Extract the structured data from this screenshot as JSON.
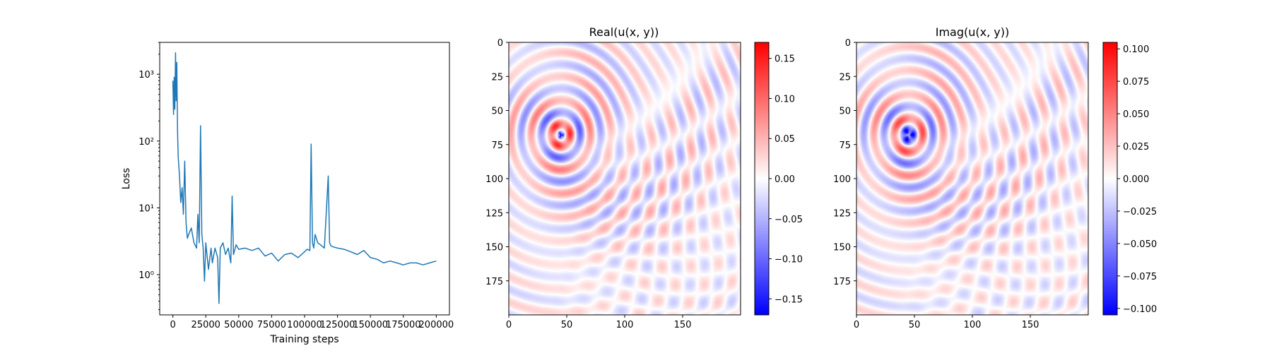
{
  "chart_data": [
    {
      "type": "line",
      "xlabel": "Training steps",
      "ylabel": "Loss",
      "yscale": "log",
      "xlim": [
        -10000,
        210000
      ],
      "ylim": [
        0.25,
        3000
      ],
      "xticks": [
        0,
        25000,
        50000,
        75000,
        100000,
        125000,
        150000,
        175000,
        200000
      ],
      "yticks": [
        1,
        10,
        100,
        1000
      ],
      "ytick_labels": [
        "10⁰",
        "10¹",
        "10²",
        "10³"
      ],
      "color": "#1f77b4",
      "series": [
        {
          "x": [
            0,
            500,
            1000,
            1500,
            2000,
            2500,
            3000,
            3500,
            4000,
            5000,
            6000,
            7000,
            8000,
            9000,
            10000,
            11000,
            12000,
            14000,
            16000,
            18000,
            19000,
            20000,
            21000,
            22000,
            23000,
            24000,
            25000,
            27000,
            29000,
            30000,
            32000,
            34000,
            35000,
            36000,
            38000,
            40000,
            42000,
            44000,
            45000,
            46000,
            48000,
            50000,
            55000,
            60000,
            65000,
            70000,
            75000,
            80000,
            85000,
            90000,
            95000,
            100000,
            102000,
            104000,
            105000,
            106000,
            107000,
            108000,
            110000,
            112000,
            115000,
            118000,
            119000,
            120000,
            122000,
            125000,
            130000,
            135000,
            140000,
            145000,
            150000,
            155000,
            160000,
            165000,
            170000,
            175000,
            180000,
            185000,
            190000,
            195000,
            200000
          ],
          "y": [
            800,
            250,
            900,
            300,
            2100,
            400,
            1500,
            150,
            60,
            30,
            12,
            20,
            8,
            50,
            6,
            3.5,
            4,
            5,
            3,
            2.5,
            8,
            3,
            170,
            4,
            2.5,
            0.8,
            3,
            1.2,
            2.5,
            1.5,
            2.5,
            1.8,
            0.37,
            2.5,
            3,
            2,
            2.5,
            1.5,
            15,
            2,
            2.8,
            2.4,
            2.5,
            2.3,
            2.5,
            1.9,
            2.1,
            1.6,
            2,
            2.1,
            1.8,
            2.2,
            2.4,
            2.3,
            90,
            3,
            2.5,
            4,
            3,
            2.8,
            2.5,
            30,
            3,
            2.7,
            2.6,
            2.5,
            2.4,
            2.2,
            2.0,
            2.3,
            1.8,
            1.7,
            1.5,
            1.6,
            1.5,
            1.4,
            1.5,
            1.5,
            1.4,
            1.5,
            1.6
          ]
        }
      ]
    },
    {
      "type": "heatmap",
      "title": "Real(u(x, y))",
      "colormap": "bwr",
      "extent": [
        0,
        200,
        200,
        0
      ],
      "xticks": [
        0,
        50,
        100,
        150
      ],
      "yticks": [
        0,
        25,
        50,
        75,
        100,
        125,
        150,
        175
      ],
      "source_center": [
        45,
        68
      ],
      "wave_amplitude": 0.17,
      "colorbar": {
        "vmin": -0.17,
        "vmax": 0.17,
        "ticks": [
          -0.15,
          -0.1,
          -0.05,
          0.0,
          0.05,
          0.1,
          0.15
        ],
        "tick_labels": [
          "−0.15",
          "−0.10",
          "−0.05",
          "0.00",
          "0.05",
          "0.10",
          "0.15"
        ]
      }
    },
    {
      "type": "heatmap",
      "title": "Imag(u(x, y))",
      "colormap": "bwr",
      "extent": [
        0,
        200,
        200,
        0
      ],
      "xticks": [
        0,
        50,
        100,
        150
      ],
      "yticks": [
        0,
        25,
        50,
        75,
        100,
        125,
        150,
        175
      ],
      "source_center": [
        45,
        68
      ],
      "wave_amplitude": 0.105,
      "colorbar": {
        "vmin": -0.105,
        "vmax": 0.105,
        "ticks": [
          -0.1,
          -0.075,
          -0.05,
          -0.025,
          0.0,
          0.025,
          0.05,
          0.075,
          0.1
        ],
        "tick_labels": [
          "−0.100",
          "−0.075",
          "−0.050",
          "−0.025",
          "0.000",
          "0.025",
          "0.050",
          "0.075",
          "0.100"
        ]
      }
    }
  ]
}
